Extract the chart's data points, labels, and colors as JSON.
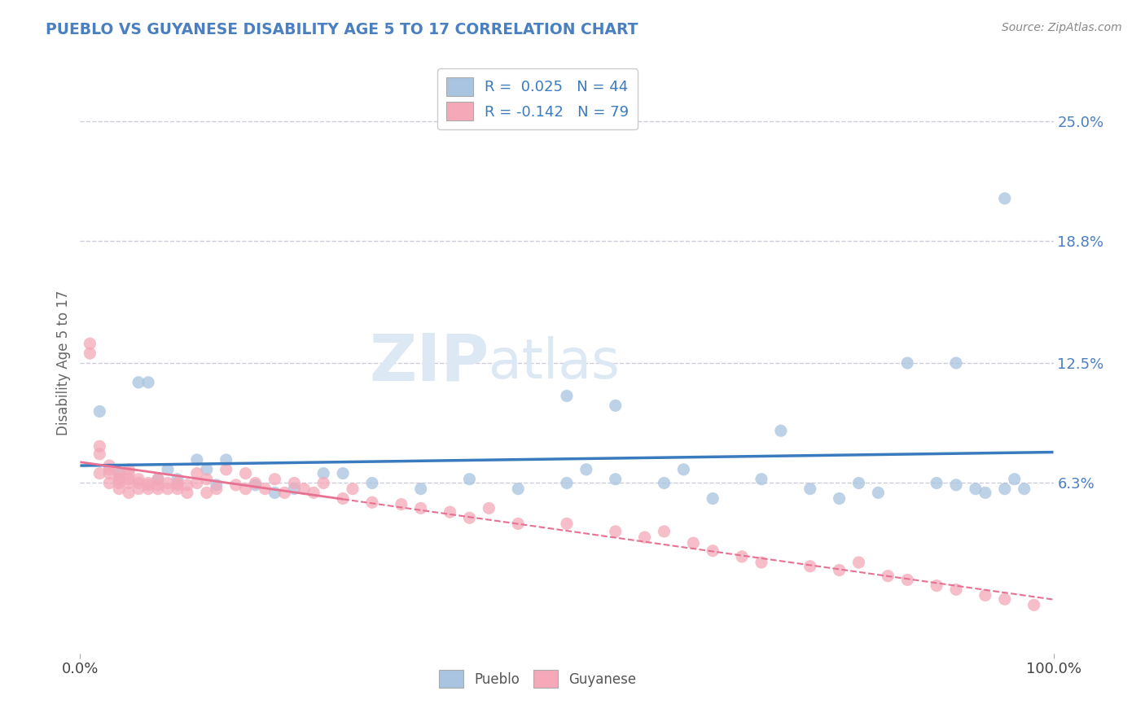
{
  "title": "PUEBLO VS GUYANESE DISABILITY AGE 5 TO 17 CORRELATION CHART",
  "source_text": "Source: ZipAtlas.com",
  "ylabel": "Disability Age 5 to 17",
  "xlim": [
    0.0,
    1.0
  ],
  "ylim": [
    -0.025,
    0.275
  ],
  "yticks": [
    0.063,
    0.125,
    0.188,
    0.25
  ],
  "ytick_labels": [
    "6.3%",
    "12.5%",
    "18.8%",
    "25.0%"
  ],
  "xtick_labels": [
    "0.0%",
    "100.0%"
  ],
  "xticks": [
    0.0,
    1.0
  ],
  "pueblo_R": 0.025,
  "pueblo_N": 44,
  "guyanese_R": -0.142,
  "guyanese_N": 79,
  "pueblo_color": "#a8c4e0",
  "guyanese_color": "#f4a8b8",
  "pueblo_line_color": "#3a7abf",
  "guyanese_line_color": "#e87090",
  "watermark_zip": "ZIP",
  "watermark_atlas": "atlas",
  "background_color": "#ffffff",
  "grid_color": "#ccccdd",
  "pueblo_scatter_x": [
    0.02,
    0.04,
    0.06,
    0.07,
    0.08,
    0.09,
    0.1,
    0.12,
    0.13,
    0.14,
    0.15,
    0.18,
    0.2,
    0.22,
    0.25,
    0.27,
    0.3,
    0.35,
    0.4,
    0.45,
    0.5,
    0.52,
    0.55,
    0.6,
    0.62,
    0.65,
    0.7,
    0.72,
    0.75,
    0.78,
    0.8,
    0.82,
    0.85,
    0.88,
    0.9,
    0.92,
    0.93,
    0.95,
    0.96,
    0.97,
    0.5,
    0.55,
    0.9,
    0.95
  ],
  "pueblo_scatter_y": [
    0.1,
    0.068,
    0.115,
    0.115,
    0.065,
    0.07,
    0.065,
    0.075,
    0.07,
    0.062,
    0.075,
    0.062,
    0.058,
    0.06,
    0.068,
    0.068,
    0.063,
    0.06,
    0.065,
    0.06,
    0.063,
    0.07,
    0.065,
    0.063,
    0.07,
    0.055,
    0.065,
    0.09,
    0.06,
    0.055,
    0.063,
    0.058,
    0.125,
    0.063,
    0.062,
    0.06,
    0.058,
    0.06,
    0.065,
    0.06,
    0.108,
    0.103,
    0.125,
    0.21
  ],
  "guyanese_scatter_x": [
    0.01,
    0.01,
    0.02,
    0.02,
    0.02,
    0.03,
    0.03,
    0.03,
    0.03,
    0.04,
    0.04,
    0.04,
    0.04,
    0.04,
    0.05,
    0.05,
    0.05,
    0.05,
    0.05,
    0.06,
    0.06,
    0.06,
    0.07,
    0.07,
    0.07,
    0.08,
    0.08,
    0.08,
    0.09,
    0.09,
    0.1,
    0.1,
    0.1,
    0.11,
    0.11,
    0.12,
    0.12,
    0.13,
    0.13,
    0.14,
    0.15,
    0.16,
    0.17,
    0.17,
    0.18,
    0.19,
    0.2,
    0.21,
    0.22,
    0.23,
    0.24,
    0.25,
    0.27,
    0.28,
    0.3,
    0.33,
    0.35,
    0.38,
    0.4,
    0.42,
    0.45,
    0.5,
    0.55,
    0.58,
    0.6,
    0.63,
    0.65,
    0.68,
    0.7,
    0.75,
    0.78,
    0.8,
    0.83,
    0.85,
    0.88,
    0.9,
    0.93,
    0.95,
    0.98
  ],
  "guyanese_scatter_y": [
    0.13,
    0.135,
    0.068,
    0.078,
    0.082,
    0.068,
    0.07,
    0.072,
    0.063,
    0.068,
    0.065,
    0.063,
    0.065,
    0.06,
    0.068,
    0.065,
    0.07,
    0.063,
    0.058,
    0.06,
    0.063,
    0.065,
    0.062,
    0.06,
    0.063,
    0.062,
    0.06,
    0.065,
    0.06,
    0.063,
    0.062,
    0.06,
    0.063,
    0.062,
    0.058,
    0.068,
    0.063,
    0.065,
    0.058,
    0.06,
    0.07,
    0.062,
    0.06,
    0.068,
    0.063,
    0.06,
    0.065,
    0.058,
    0.063,
    0.06,
    0.058,
    0.063,
    0.055,
    0.06,
    0.053,
    0.052,
    0.05,
    0.048,
    0.045,
    0.05,
    0.042,
    0.042,
    0.038,
    0.035,
    0.038,
    0.032,
    0.028,
    0.025,
    0.022,
    0.02,
    0.018,
    0.022,
    0.015,
    0.013,
    0.01,
    0.008,
    0.005,
    0.003,
    0.0
  ]
}
